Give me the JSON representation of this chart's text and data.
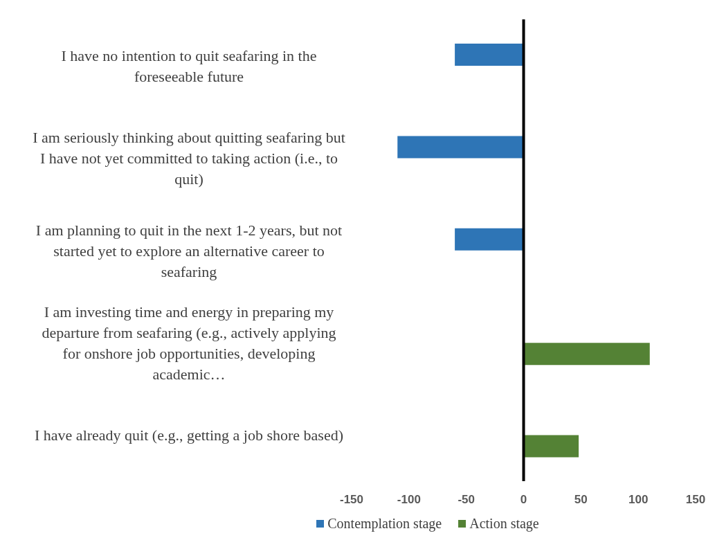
{
  "chart_data": {
    "type": "bar",
    "orientation": "horizontal",
    "categories": [
      "I have no intention to quit seafaring in the foreseeable future",
      "I am seriously thinking about quitting seafaring but I have not yet committed to taking action (i.e., to quit)",
      "I am planning to quit in the next 1-2 years, but not started yet to explore an alternative career to seafaring",
      "I am investing time and energy in preparing my departure from seafaring (e.g., actively applying for onshore job opportunities, developing academic…",
      "I have already quit (e.g., getting a job shore based)"
    ],
    "series": [
      {
        "name": "Contemplation stage",
        "color": "#2e75b6",
        "values": [
          -60,
          -110,
          -60,
          null,
          null
        ]
      },
      {
        "name": "Action stage",
        "color": "#548235",
        "values": [
          null,
          null,
          null,
          110,
          48
        ]
      }
    ],
    "xlim": [
      -150,
      150
    ],
    "xticks": [
      -150,
      -100,
      -50,
      0,
      50,
      100,
      150
    ],
    "ref_lines": [
      {
        "axis": "x",
        "value": 0,
        "color": "#000000"
      }
    ],
    "grid": false,
    "legend": "bottom"
  }
}
